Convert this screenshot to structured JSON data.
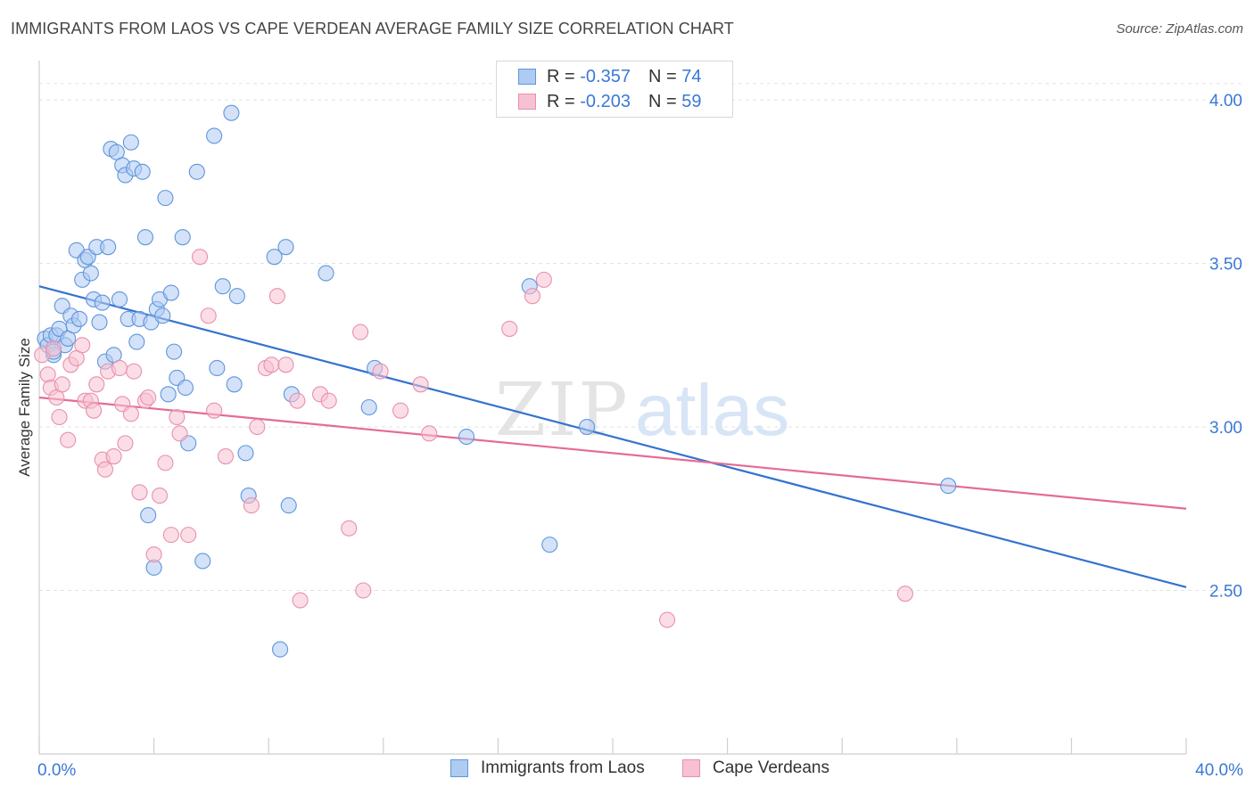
{
  "header": {
    "title": "IMMIGRANTS FROM LAOS VS CAPE VERDEAN AVERAGE FAMILY SIZE CORRELATION CHART",
    "source": "Source: ZipAtlas.com"
  },
  "watermark": {
    "zip": "ZIP",
    "atlas": "atlas"
  },
  "legend_top": {
    "r_label": "R =",
    "n_label": "N =",
    "rows": [
      {
        "r": "-0.357",
        "n": "74"
      },
      {
        "r": "-0.203",
        "n": "59"
      }
    ]
  },
  "colors": {
    "blue_fill": "#aecbf2",
    "blue_stroke": "#5f95dc",
    "blue_line": "#3472d0",
    "pink_fill": "#f7c1d1",
    "pink_stroke": "#e890ad",
    "pink_line": "#e56b95",
    "tick_text": "#3b78d6",
    "grid": "#e3e3e3"
  },
  "chart_data": {
    "type": "scatter",
    "title": "IMMIGRANTS FROM LAOS VS CAPE VERDEAN AVERAGE FAMILY SIZE CORRELATION CHART",
    "xlabel": "",
    "ylabel": "Average Family Size",
    "xlim": [
      0,
      40
    ],
    "ylim": [
      2.0,
      4.12
    ],
    "x_tick_labels": [
      "0.0%",
      "40.0%"
    ],
    "y_ticks": [
      2.5,
      3.0,
      3.5,
      4.0
    ],
    "y_tick_labels": [
      "2.50",
      "3.00",
      "3.50",
      "4.00"
    ],
    "grid": true,
    "legend_position": "bottom",
    "series": [
      {
        "name": "Immigrants from Laos",
        "color": "#aecbf2",
        "trend": {
          "x": [
            0,
            40
          ],
          "y": [
            3.43,
            2.51
          ]
        },
        "points": [
          [
            0.2,
            3.27
          ],
          [
            0.3,
            3.25
          ],
          [
            0.4,
            3.28
          ],
          [
            0.5,
            3.22
          ],
          [
            0.6,
            3.28
          ],
          [
            0.7,
            3.3
          ],
          [
            0.8,
            3.37
          ],
          [
            0.9,
            3.25
          ],
          [
            1.0,
            3.27
          ],
          [
            1.1,
            3.34
          ],
          [
            1.2,
            3.31
          ],
          [
            1.3,
            3.54
          ],
          [
            1.4,
            3.33
          ],
          [
            1.5,
            3.45
          ],
          [
            1.6,
            3.51
          ],
          [
            1.7,
            3.52
          ],
          [
            1.8,
            3.47
          ],
          [
            1.9,
            3.39
          ],
          [
            2.0,
            3.55
          ],
          [
            2.1,
            3.32
          ],
          [
            2.2,
            3.38
          ],
          [
            2.3,
            3.2
          ],
          [
            2.4,
            3.55
          ],
          [
            2.5,
            3.85
          ],
          [
            2.6,
            3.22
          ],
          [
            2.7,
            3.84
          ],
          [
            2.8,
            3.39
          ],
          [
            2.9,
            3.8
          ],
          [
            3.0,
            3.77
          ],
          [
            3.1,
            3.33
          ],
          [
            3.2,
            3.87
          ],
          [
            3.3,
            3.79
          ],
          [
            3.4,
            3.26
          ],
          [
            3.5,
            3.33
          ],
          [
            3.6,
            3.78
          ],
          [
            3.7,
            3.58
          ],
          [
            3.8,
            2.73
          ],
          [
            3.9,
            3.32
          ],
          [
            4.0,
            2.57
          ],
          [
            4.1,
            3.36
          ],
          [
            4.2,
            3.39
          ],
          [
            4.3,
            3.34
          ],
          [
            4.4,
            3.7
          ],
          [
            4.5,
            3.1
          ],
          [
            4.6,
            3.41
          ],
          [
            4.7,
            3.23
          ],
          [
            4.8,
            3.15
          ],
          [
            5.0,
            3.58
          ],
          [
            5.1,
            3.12
          ],
          [
            5.2,
            2.95
          ],
          [
            5.5,
            3.78
          ],
          [
            5.7,
            2.59
          ],
          [
            6.1,
            3.89
          ],
          [
            6.2,
            3.18
          ],
          [
            6.4,
            3.43
          ],
          [
            6.7,
            3.96
          ],
          [
            6.8,
            3.13
          ],
          [
            6.9,
            3.4
          ],
          [
            7.2,
            2.92
          ],
          [
            7.3,
            2.79
          ],
          [
            8.2,
            3.52
          ],
          [
            8.4,
            2.32
          ],
          [
            8.6,
            3.55
          ],
          [
            8.7,
            2.76
          ],
          [
            8.8,
            3.1
          ],
          [
            10.0,
            3.47
          ],
          [
            11.5,
            3.06
          ],
          [
            11.7,
            3.18
          ],
          [
            14.9,
            2.97
          ],
          [
            17.1,
            3.43
          ],
          [
            17.8,
            2.64
          ],
          [
            19.1,
            3.0
          ],
          [
            31.7,
            2.82
          ],
          [
            0.5,
            3.23
          ]
        ]
      },
      {
        "name": "Cape Verdeans",
        "color": "#f7c1d1",
        "trend": {
          "x": [
            0,
            40
          ],
          "y": [
            3.09,
            2.75
          ]
        },
        "points": [
          [
            0.1,
            3.22
          ],
          [
            0.3,
            3.16
          ],
          [
            0.4,
            3.12
          ],
          [
            0.5,
            3.24
          ],
          [
            0.6,
            3.09
          ],
          [
            0.7,
            3.03
          ],
          [
            0.8,
            3.13
          ],
          [
            1.0,
            2.96
          ],
          [
            1.1,
            3.19
          ],
          [
            1.3,
            3.21
          ],
          [
            1.5,
            3.25
          ],
          [
            1.6,
            3.08
          ],
          [
            1.8,
            3.08
          ],
          [
            1.9,
            3.05
          ],
          [
            2.0,
            3.13
          ],
          [
            2.2,
            2.9
          ],
          [
            2.3,
            2.87
          ],
          [
            2.4,
            3.17
          ],
          [
            2.6,
            2.91
          ],
          [
            2.8,
            3.18
          ],
          [
            2.9,
            3.07
          ],
          [
            3.0,
            2.95
          ],
          [
            3.2,
            3.04
          ],
          [
            3.3,
            3.17
          ],
          [
            3.5,
            2.8
          ],
          [
            3.7,
            3.08
          ],
          [
            3.8,
            3.09
          ],
          [
            4.0,
            2.61
          ],
          [
            4.2,
            2.79
          ],
          [
            4.4,
            2.89
          ],
          [
            4.6,
            2.67
          ],
          [
            4.8,
            3.03
          ],
          [
            4.9,
            2.98
          ],
          [
            5.2,
            2.67
          ],
          [
            5.6,
            3.52
          ],
          [
            5.9,
            3.34
          ],
          [
            6.1,
            3.05
          ],
          [
            6.5,
            2.91
          ],
          [
            7.4,
            2.76
          ],
          [
            7.6,
            3.0
          ],
          [
            7.9,
            3.18
          ],
          [
            8.1,
            3.19
          ],
          [
            8.3,
            3.4
          ],
          [
            8.6,
            3.19
          ],
          [
            9.0,
            3.08
          ],
          [
            9.1,
            2.47
          ],
          [
            9.8,
            3.1
          ],
          [
            10.1,
            3.08
          ],
          [
            10.8,
            2.69
          ],
          [
            11.2,
            3.29
          ],
          [
            11.3,
            2.5
          ],
          [
            11.9,
            3.17
          ],
          [
            12.6,
            3.05
          ],
          [
            13.3,
            3.13
          ],
          [
            13.6,
            2.98
          ],
          [
            16.4,
            3.3
          ],
          [
            17.2,
            3.4
          ],
          [
            17.6,
            3.45
          ],
          [
            21.9,
            2.41
          ]
        ]
      }
    ]
  },
  "extra_points": {
    "pink_far": [
      [
        30.2,
        2.49
      ]
    ]
  },
  "legend_bottom": {
    "items": [
      "Immigrants from Laos",
      "Cape Verdeans"
    ]
  }
}
